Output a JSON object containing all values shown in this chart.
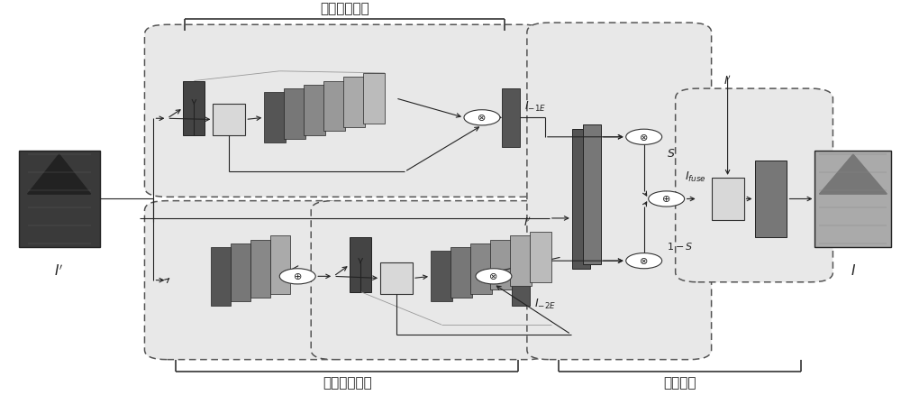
{
  "title_branch1": "第一增强支路",
  "title_branch2": "第二增强支路",
  "title_fusion": "融合模块",
  "bg_color": "#ffffff",
  "box_fill_light": "#e8e8e8",
  "box_fill_white": "#f5f5f5",
  "box_edge": "#555555",
  "arrow_color": "#222222",
  "layer_colors_b1": [
    "#444444",
    "#666666",
    "#888888",
    "#999999",
    "#aaaaaa",
    "#bbbbbb"
  ],
  "layer_colors_b2a": [
    "#555555",
    "#777777",
    "#888888",
    "#999999"
  ],
  "layer_colors_b2b": [
    "#444444",
    "#666666",
    "#888888",
    "#999999",
    "#aaaaaa",
    "#bbbbbb"
  ],
  "layer_colors_fus": [
    "#444444",
    "#666666"
  ],
  "layer_colors_ref": [
    "#888888"
  ],
  "img_in_color": "#444444",
  "img_out_color": "#aaaaaa",
  "bracket_color": "#333333"
}
